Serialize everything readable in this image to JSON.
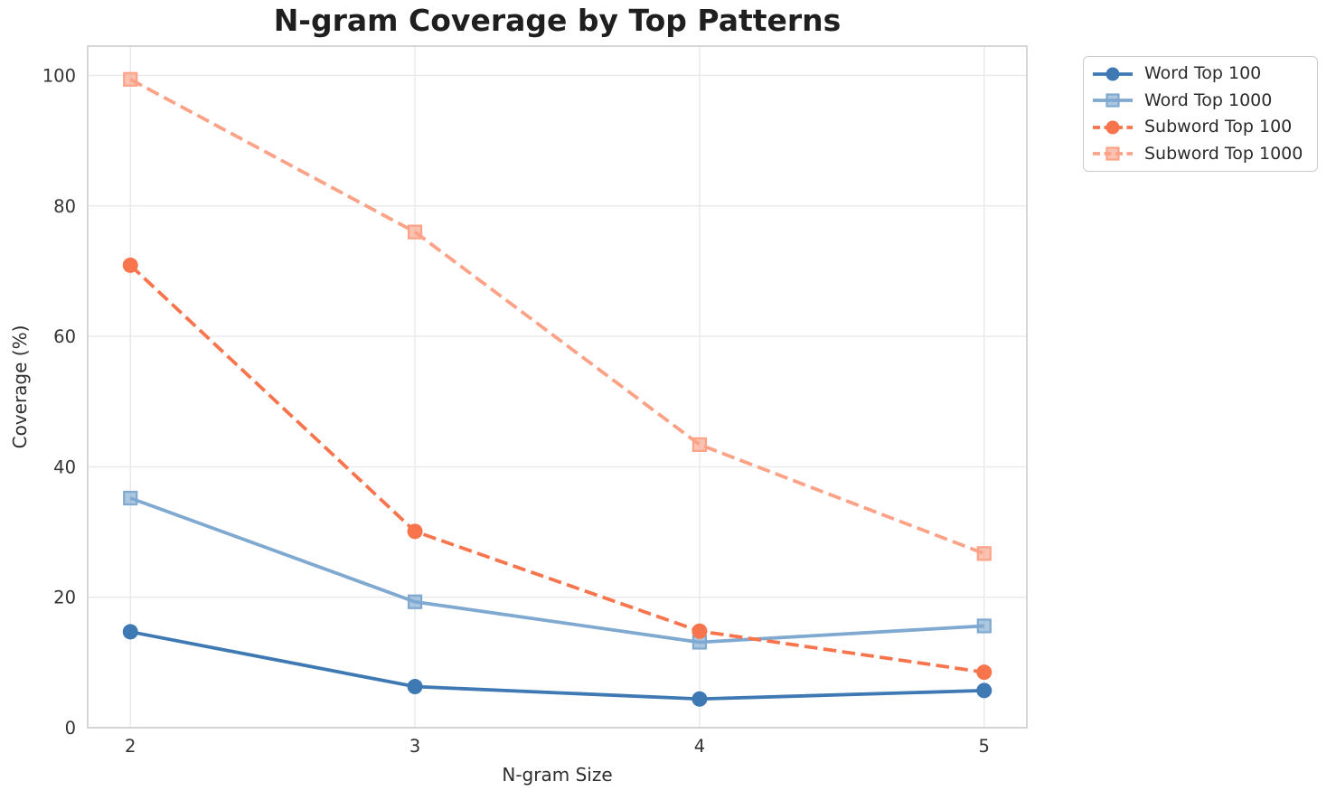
{
  "colors": {
    "background": "#ffffff",
    "grid": "#e9e9e9",
    "spine": "#cccccc",
    "tick_text": "#333333",
    "axis_label_text": "#2e2e2e",
    "title_text": "#1f1f1f",
    "legend_border": "#cccccc",
    "legend_text": "#2b2b2b"
  },
  "chart_data": {
    "type": "line",
    "title": "N-gram Coverage by Top Patterns",
    "xlabel": "N-gram Size",
    "ylabel": "Coverage (%)",
    "x": [
      2,
      3,
      4,
      5
    ],
    "x_tick_labels": [
      "2",
      "3",
      "4",
      "5"
    ],
    "y_ticks": [
      0,
      20,
      40,
      60,
      80,
      100
    ],
    "xlim": [
      1.85,
      5.15
    ],
    "ylim": [
      0,
      104.5
    ],
    "grid": true,
    "legend_position": "outside upper right",
    "series": [
      {
        "name": "Word Top 100",
        "color": "#3e79b4",
        "line_style": "solid",
        "marker": "circle",
        "values": [
          14.7,
          6.3,
          4.4,
          5.7
        ]
      },
      {
        "name": "Word Top 1000",
        "color": "#7fa9d0",
        "line_style": "solid",
        "marker": "square",
        "values": [
          35.2,
          19.3,
          13.1,
          15.6
        ]
      },
      {
        "name": "Subword Top 100",
        "color": "#f7744c",
        "line_style": "dashed",
        "marker": "circle",
        "values": [
          70.9,
          30.1,
          14.8,
          8.5
        ]
      },
      {
        "name": "Subword Top 1000",
        "color": "#fba287",
        "line_style": "dashed",
        "marker": "square",
        "values": [
          99.4,
          76.0,
          43.4,
          26.7
        ]
      }
    ]
  }
}
